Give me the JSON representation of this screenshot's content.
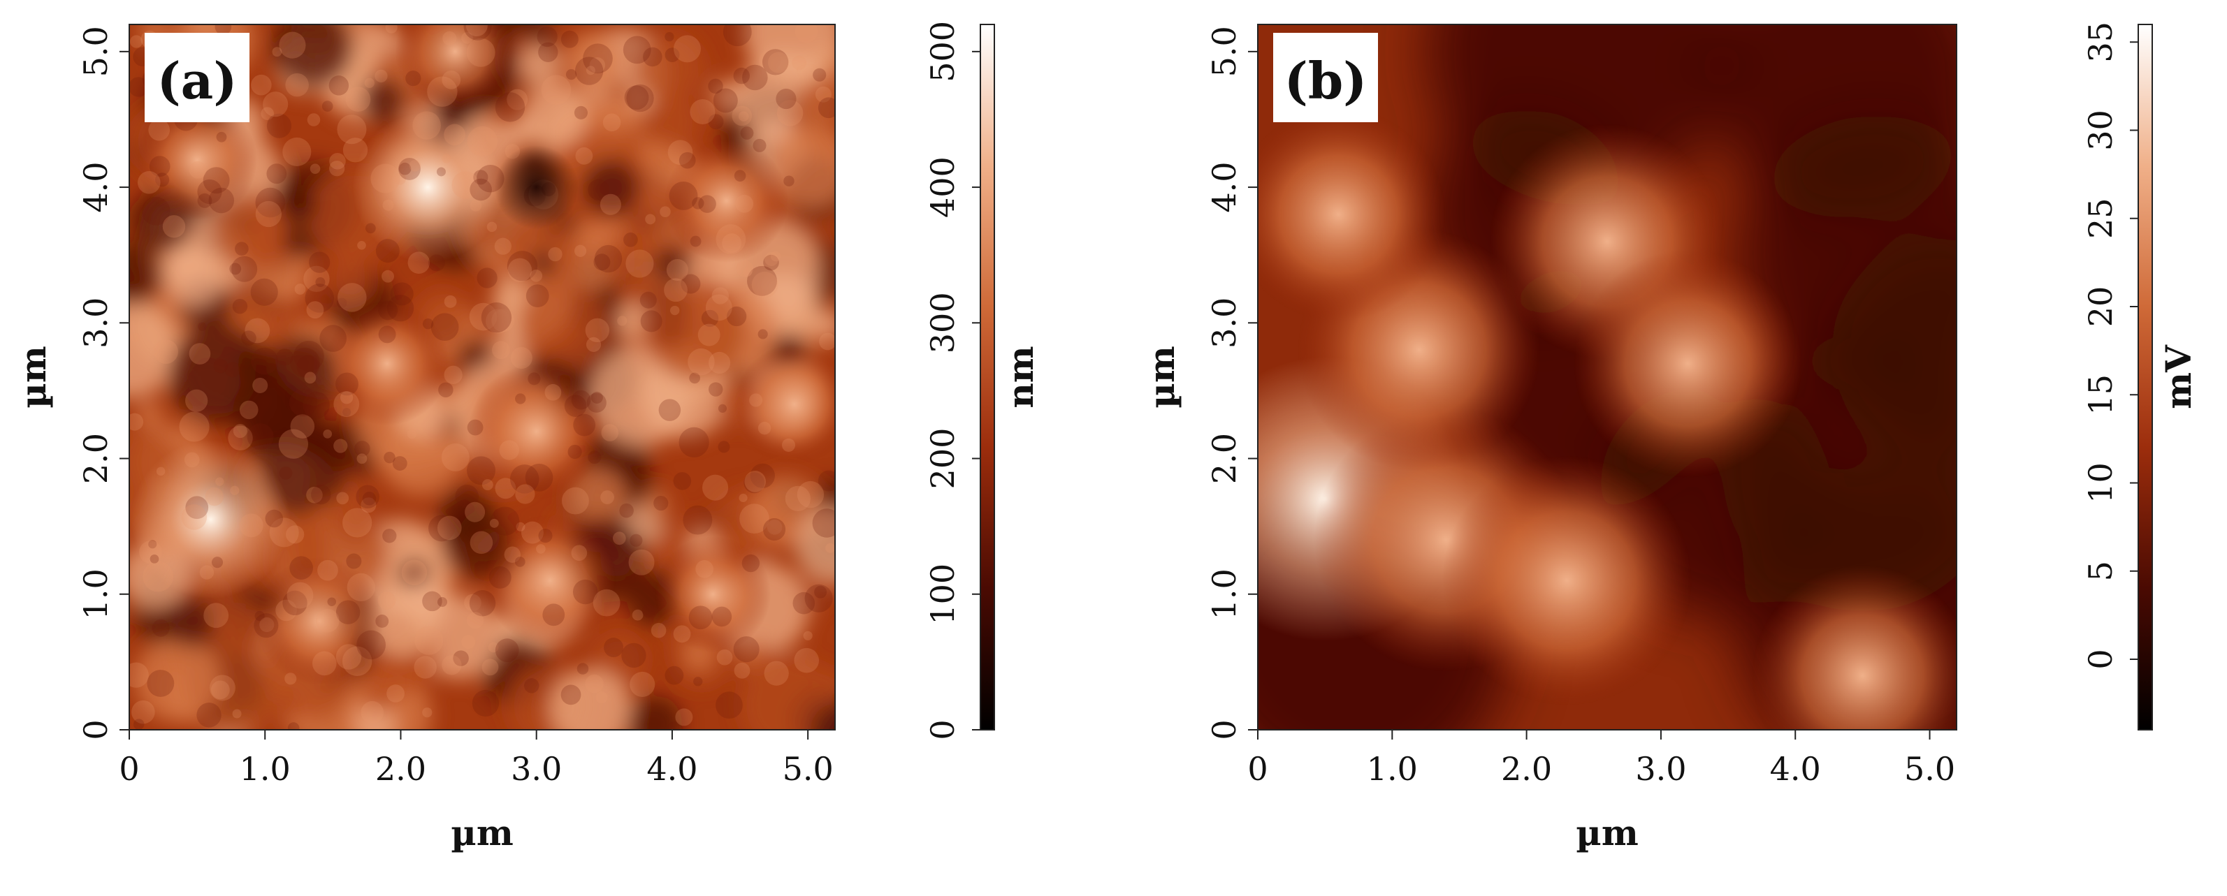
{
  "chart_data": [
    {
      "type": "heatmap",
      "panel_label": "(a)",
      "xlabel": "µm",
      "ylabel": "µm",
      "xlim": [
        0,
        5.2
      ],
      "ylim": [
        0,
        5.2
      ],
      "xticks": [
        {
          "value": 0,
          "label": "0"
        },
        {
          "value": 1.0,
          "label": "1.0"
        },
        {
          "value": 2.0,
          "label": "2.0"
        },
        {
          "value": 3.0,
          "label": "3.0"
        },
        {
          "value": 4.0,
          "label": "4.0"
        },
        {
          "value": 5.0,
          "label": "5.0"
        }
      ],
      "yticks": [
        {
          "value": 0,
          "label": "0"
        },
        {
          "value": 1.0,
          "label": "1.0"
        },
        {
          "value": 2.0,
          "label": "2.0"
        },
        {
          "value": 3.0,
          "label": "3.0"
        },
        {
          "value": 4.0,
          "label": "4.0"
        },
        {
          "value": 5.0,
          "label": "5.0"
        }
      ],
      "colorbar": {
        "label": "nm",
        "range": [
          0,
          520
        ],
        "ticks": [
          {
            "value": 0,
            "label": "0"
          },
          {
            "value": 100,
            "label": "100"
          },
          {
            "value": 200,
            "label": "200"
          },
          {
            "value": 300,
            "label": "300"
          },
          {
            "value": 400,
            "label": "400"
          },
          {
            "value": 500,
            "label": "500"
          }
        ]
      },
      "colormap": [
        "#000000",
        "#4a0a02",
        "#9c2d0c",
        "#cf6a38",
        "#f0b089",
        "#ffffff"
      ],
      "features": [
        {
          "x": 0.6,
          "y": 1.55,
          "intensity": 1.0
        },
        {
          "x": 2.2,
          "y": 4.0,
          "intensity": 0.9
        },
        {
          "x": 3.0,
          "y": 2.2,
          "intensity": 0.7
        },
        {
          "x": 3.1,
          "y": 1.1,
          "intensity": 0.65
        },
        {
          "x": 1.4,
          "y": 0.8,
          "intensity": 0.6
        },
        {
          "x": 4.4,
          "y": 3.9,
          "intensity": 0.55
        },
        {
          "x": 0.5,
          "y": 4.2,
          "intensity": 0.5
        },
        {
          "x": 2.4,
          "y": 5.0,
          "intensity": 0.5
        },
        {
          "x": 4.3,
          "y": 1.0,
          "intensity": 0.45
        },
        {
          "x": 4.9,
          "y": 2.4,
          "intensity": 0.5
        },
        {
          "x": 1.9,
          "y": 2.7,
          "intensity": 0.55
        }
      ]
    },
    {
      "type": "heatmap",
      "panel_label": "(b)",
      "xlabel": "µm",
      "ylabel": "µm",
      "xlim": [
        0,
        5.2
      ],
      "ylim": [
        0,
        5.2
      ],
      "xticks": [
        {
          "value": 0,
          "label": "0"
        },
        {
          "value": 1.0,
          "label": "1.0"
        },
        {
          "value": 2.0,
          "label": "2.0"
        },
        {
          "value": 3.0,
          "label": "3.0"
        },
        {
          "value": 4.0,
          "label": "4.0"
        },
        {
          "value": 5.0,
          "label": "5.0"
        }
      ],
      "yticks": [
        {
          "value": 0,
          "label": "0"
        },
        {
          "value": 1.0,
          "label": "1.0"
        },
        {
          "value": 2.0,
          "label": "2.0"
        },
        {
          "value": 3.0,
          "label": "3.0"
        },
        {
          "value": 4.0,
          "label": "4.0"
        },
        {
          "value": 5.0,
          "label": "5.0"
        }
      ],
      "colorbar": {
        "label": "mV",
        "range": [
          -4,
          36
        ],
        "ticks": [
          {
            "value": 0,
            "label": "0"
          },
          {
            "value": 5,
            "label": "5"
          },
          {
            "value": 10,
            "label": "10"
          },
          {
            "value": 15,
            "label": "15"
          },
          {
            "value": 20,
            "label": "20"
          },
          {
            "value": 25,
            "label": "25"
          },
          {
            "value": 30,
            "label": "30"
          },
          {
            "value": 35,
            "label": "35"
          }
        ]
      },
      "colormap": [
        "#000000",
        "#4a0a02",
        "#9c2d0c",
        "#cf6a38",
        "#f0b089",
        "#ffffff"
      ],
      "features": [
        {
          "x": 0.5,
          "y": 1.7,
          "intensity": 1.0
        },
        {
          "x": 1.4,
          "y": 1.4,
          "intensity": 0.85
        },
        {
          "x": 2.3,
          "y": 1.1,
          "intensity": 0.75
        },
        {
          "x": 1.2,
          "y": 2.8,
          "intensity": 0.7
        },
        {
          "x": 2.6,
          "y": 3.6,
          "intensity": 0.65
        },
        {
          "x": 3.2,
          "y": 2.7,
          "intensity": 0.6
        },
        {
          "x": 4.5,
          "y": 0.4,
          "intensity": 0.55
        },
        {
          "x": 0.6,
          "y": 3.8,
          "intensity": 0.5
        }
      ]
    }
  ]
}
